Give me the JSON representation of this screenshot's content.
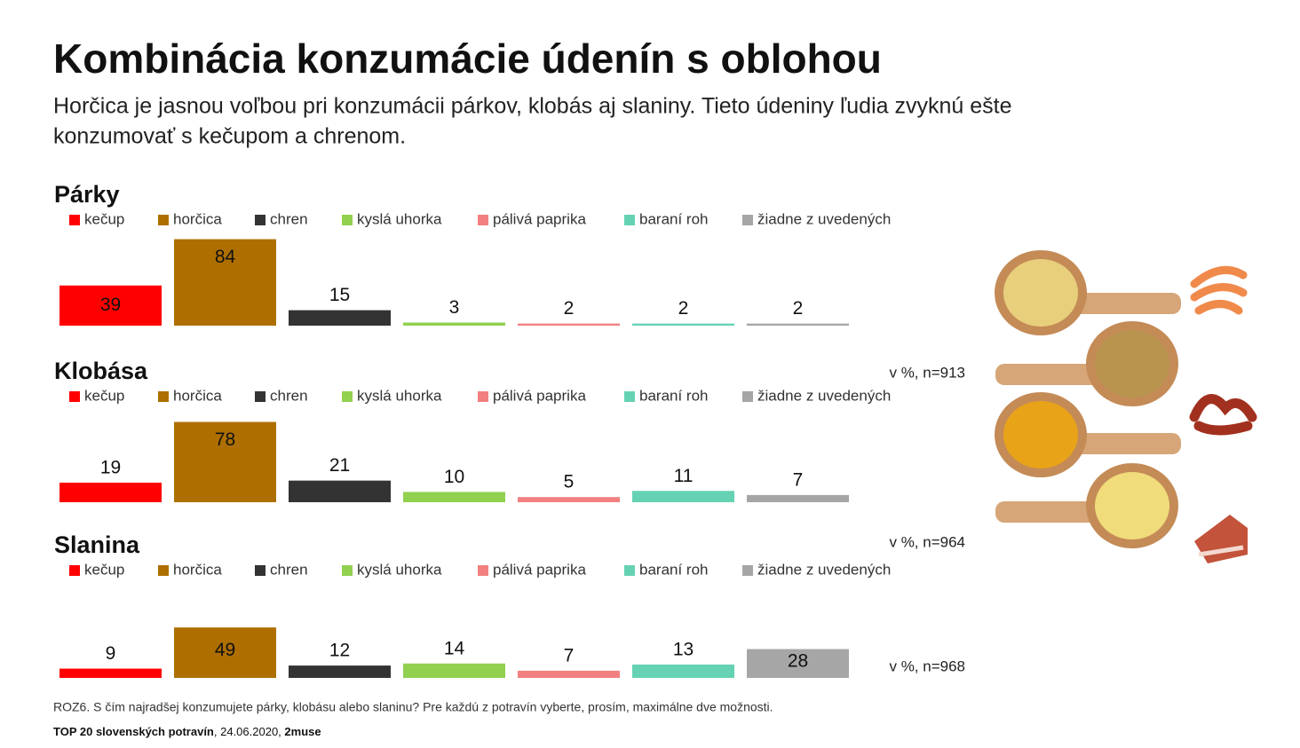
{
  "title": "Kombinácia konzumácie údenín s oblohou",
  "subtitle": [
    "Horčica je jasnou voľbou pri konzumácii párkov, klobás aj slaniny. Tieto údeniny ľudia zvyknú ešte",
    "konzumovať s kečupom a chrenom."
  ],
  "chart_data": [
    {
      "type": "bar",
      "title": "Párky",
      "categories": [
        "kečup",
        "horčica",
        "chren",
        "kyslá uhorka",
        "pálivá paprika",
        "baraní roh",
        "žiadne z uvedených"
      ],
      "values": [
        39,
        84,
        15,
        3,
        2,
        2,
        2
      ],
      "colors": [
        "#ff0000",
        "#ae6f00",
        "#333333",
        "#92d050",
        "#f28080",
        "#66d2b4",
        "#a6a6a6"
      ],
      "note": "v %, n=913"
    },
    {
      "type": "bar",
      "title": "Klobása",
      "categories": [
        "kečup",
        "horčica",
        "chren",
        "kyslá uhorka",
        "pálivá paprika",
        "baraní roh",
        "žiadne z uvedených"
      ],
      "values": [
        19,
        78,
        21,
        10,
        5,
        11,
        7
      ],
      "colors": [
        "#ff0000",
        "#ae6f00",
        "#333333",
        "#92d050",
        "#f28080",
        "#66d2b4",
        "#a6a6a6"
      ],
      "note": "v %, n=964"
    },
    {
      "type": "bar",
      "title": "Slanina",
      "categories": [
        "kečup",
        "horčica",
        "chren",
        "kyslá uhorka",
        "pálivá paprika",
        "baraní roh",
        "žiadne z uvedených"
      ],
      "values": [
        9,
        49,
        12,
        14,
        7,
        13,
        28
      ],
      "colors": [
        "#ff0000",
        "#ae6f00",
        "#333333",
        "#92d050",
        "#f28080",
        "#66d2b4",
        "#a6a6a6"
      ],
      "note": "v %, n=968"
    }
  ],
  "footnote": "ROZ6. S čím najradšej konzumujete párky, klobásu alebo slaninu? Pre každú z potravín vyberte, prosím, maximálne dve možnosti.",
  "source": {
    "name": "TOP 20 slovenských potravín",
    "date": ", 24.06.2020, ",
    "author": "2muse"
  }
}
